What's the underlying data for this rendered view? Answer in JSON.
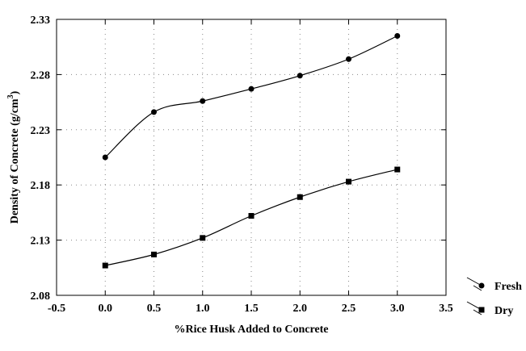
{
  "chart_data": {
    "type": "line",
    "xlabel": "%Rice Husk Added to Concrete",
    "ylabel": "Density of Concrete (g/cm",
    "ylabel_superscript": "3",
    "ylabel_close": ")",
    "xlim": [
      -0.5,
      3.5
    ],
    "ylim": [
      2.08,
      2.33
    ],
    "x_ticks": [
      "-0.5",
      "0.0",
      "0.5",
      "1.0",
      "1.5",
      "2.0",
      "2.5",
      "3.0",
      "3.5"
    ],
    "y_ticks": [
      "2.08",
      "2.13",
      "2.18",
      "2.23",
      "2.28",
      "2.33"
    ],
    "grid": "dotted",
    "legend_position": "bottom-right outside",
    "series": [
      {
        "name": "Fresh",
        "marker": "circle",
        "color": "#000000",
        "x": [
          0.0,
          0.5,
          1.0,
          1.5,
          2.0,
          2.5,
          3.0
        ],
        "y": [
          2.205,
          2.246,
          2.256,
          2.267,
          2.279,
          2.294,
          2.315
        ]
      },
      {
        "name": "Dry",
        "marker": "square",
        "color": "#000000",
        "x": [
          0.0,
          0.5,
          1.0,
          1.5,
          2.0,
          2.5,
          3.0
        ],
        "y": [
          2.107,
          2.117,
          2.132,
          2.152,
          2.169,
          2.183,
          2.194
        ]
      }
    ]
  }
}
